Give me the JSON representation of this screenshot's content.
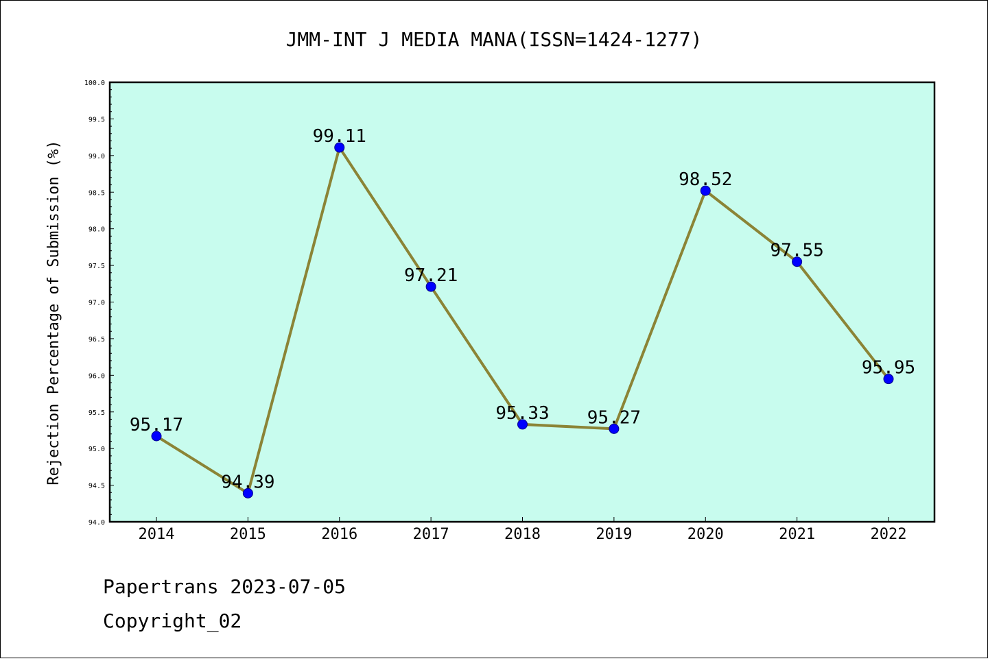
{
  "chart_data": {
    "type": "line",
    "title": "JMM-INT J MEDIA MANA(ISSN=1424-1277)",
    "xlabel": "",
    "ylabel": "Rejection Percentage of Submission (%)",
    "categories": [
      "2014",
      "2015",
      "2016",
      "2017",
      "2018",
      "2019",
      "2020",
      "2021",
      "2022"
    ],
    "series": [
      {
        "values": [
          95.17,
          94.39,
          99.11,
          97.21,
          95.33,
          95.27,
          98.52,
          97.55,
          95.95
        ]
      }
    ],
    "data_labels": [
      "95.17",
      "94.39",
      "99.11",
      "97.21",
      "95.33",
      "95.27",
      "98.52",
      "97.55",
      "95.95"
    ],
    "ylim": [
      94.0,
      100.0
    ],
    "yticks": [
      "94.0",
      "94.5",
      "95.0",
      "95.5",
      "96.0",
      "96.5",
      "97.0",
      "97.5",
      "98.0",
      "98.5",
      "99.0",
      "99.5",
      "100.0"
    ],
    "grid": false,
    "colors": {
      "plot_background": "#c8fcee",
      "line": "#8b8436",
      "marker": "#0000ff"
    }
  },
  "footer": {
    "line1": "Papertrans 2023-07-05",
    "line2": "Copyright_02"
  }
}
